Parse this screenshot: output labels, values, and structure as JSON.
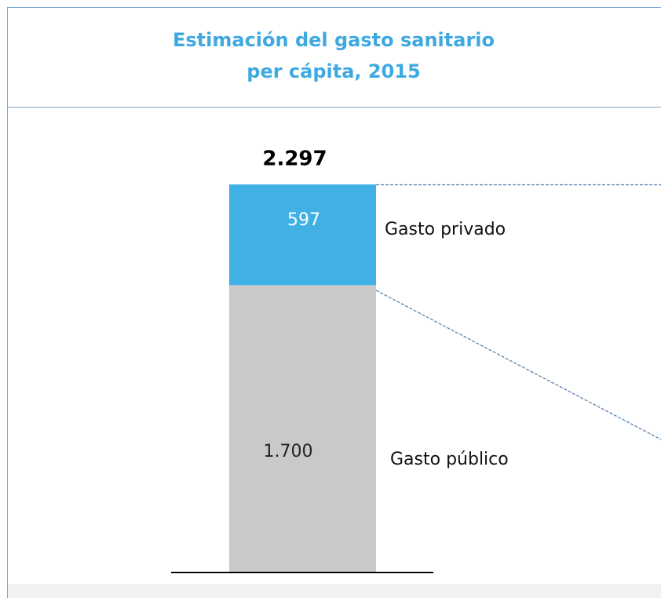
{
  "chart_data": {
    "type": "stacked_bar",
    "title": "Estimación del gasto sanitario",
    "subtitle": "per cápita, 2015",
    "categories": [
      null
    ],
    "series": [
      {
        "name": "Gasto público",
        "color": "#c9c9c9",
        "values": [
          1700
        ],
        "value_labels": [
          "1.700"
        ]
      },
      {
        "name": "Gasto privado",
        "color": "#41b0e4",
        "values": [
          597
        ],
        "value_labels": [
          "597"
        ]
      }
    ],
    "total": 2297,
    "total_label": "2.297"
  }
}
